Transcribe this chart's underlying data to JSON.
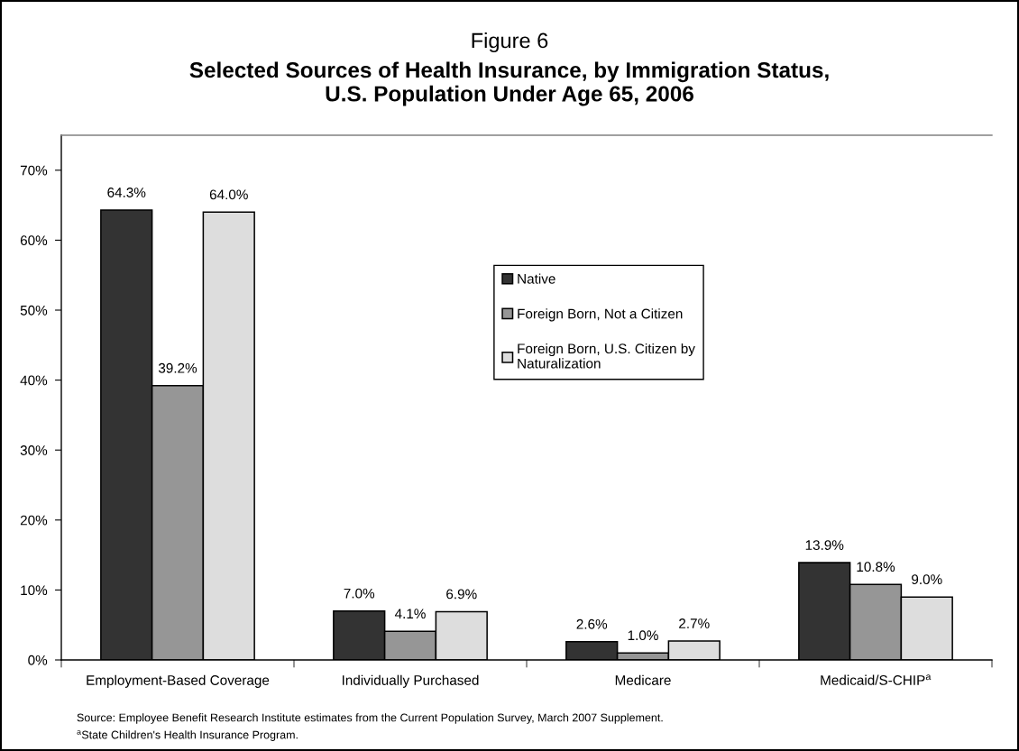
{
  "chart_data": {
    "type": "bar",
    "title": "Figure 6",
    "subtitle": "Selected Sources of Health Insurance, by Immigration Status,\nU.S. Population Under Age 65, 2006",
    "categories": [
      "Employment-Based Coverage",
      "Individually Purchased",
      "Medicare",
      "Medicaid/S-CHIP$^{a}$"
    ],
    "series": [
      {
        "name": "Native",
        "color": "#333333",
        "values": [
          64.3,
          7.0,
          2.6,
          13.9
        ],
        "value_labels": [
          "64.3%",
          "7.0%",
          "2.6%",
          "13.9%"
        ]
      },
      {
        "name": "Foreign Born, Not a Citizen",
        "color": "#969696",
        "values": [
          39.2,
          4.1,
          1.0,
          10.8
        ],
        "value_labels": [
          "39.2%",
          "4.1%",
          "1.0%",
          "10.8%"
        ]
      },
      {
        "name": "Foreign Born, U.S. Citizen by\nNaturalization",
        "color": "#dddddd",
        "values": [
          64.0,
          6.9,
          2.7,
          9.0
        ],
        "value_labels": [
          "64.0%",
          "6.9%",
          "2.7%",
          "9.0%"
        ]
      }
    ],
    "ylim": [
      0,
      75
    ],
    "yticks": [
      {
        "value": 0,
        "label": "0%"
      },
      {
        "value": 10,
        "label": "10%"
      },
      {
        "value": 20,
        "label": "20%"
      },
      {
        "value": 30,
        "label": "30%"
      },
      {
        "value": 40,
        "label": "40%"
      },
      {
        "value": 50,
        "label": "50%"
      },
      {
        "value": 60,
        "label": "60%"
      },
      {
        "value": 70,
        "label": "70%"
      }
    ],
    "legend": "top",
    "annotations": [
      "Source: Employee Benefit Research Institute estimates from the Current Population Survey, March 2007 Supplement.",
      "$^{a}$State Children's Health Insurance Program."
    ]
  }
}
